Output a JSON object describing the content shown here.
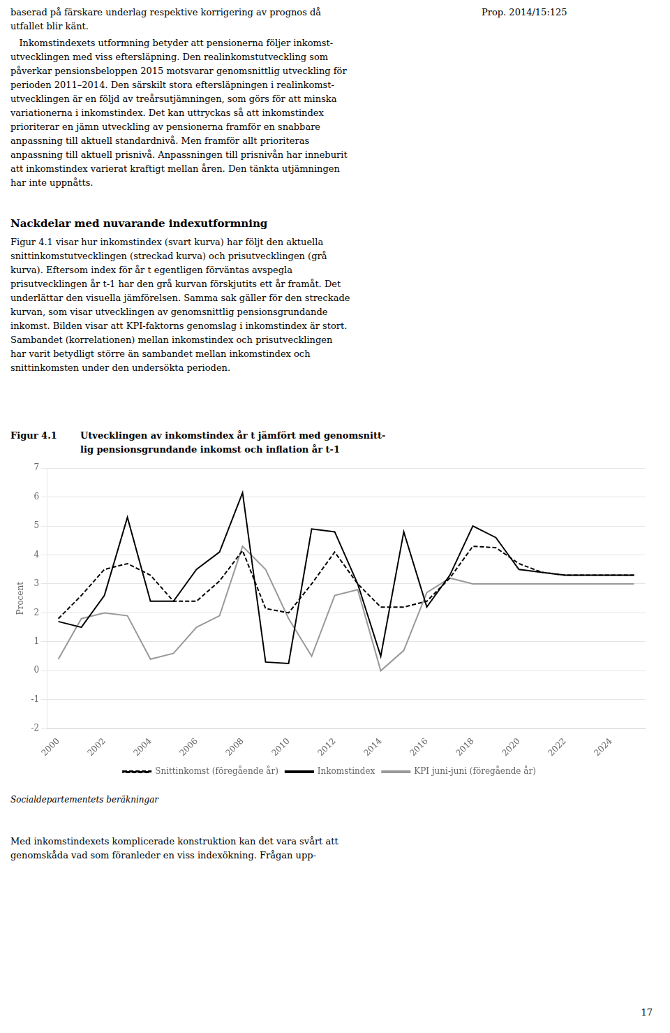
{
  "chart_data": {
    "type": "line",
    "title": "Utvecklingen av inkomstindex år t jämfört med genomsnitt-\nlig pensionsgrundande inkomst och inflation år t-1",
    "y_label": "Procent",
    "annotations": [
      "Figur 4.1",
      "Socialdepartementets beräkningar"
    ],
    "x": [
      2000,
      2001,
      2002,
      2003,
      2004,
      2005,
      2006,
      2007,
      2008,
      2009,
      2010,
      2011,
      2012,
      2013,
      2014,
      2015,
      2016,
      2017,
      2018,
      2019,
      2020,
      2021,
      2022,
      2023,
      2024,
      2025
    ],
    "series": [
      {
        "name": "Snittinkomst (föregående år)",
        "color": "#000000",
        "line_style": "dashed",
        "values": [
          1.8,
          2.6,
          3.5,
          3.7,
          3.3,
          2.4,
          2.4,
          3.1,
          4.15,
          2.15,
          2.0,
          3.0,
          4.1,
          3.0,
          2.2,
          2.2,
          2.4,
          3.2,
          4.3,
          4.25,
          3.7,
          3.4,
          3.3,
          3.3,
          3.3,
          3.3
        ]
      },
      {
        "name": "Inkomstindex",
        "color": "#000000",
        "line_style": "solid",
        "values": [
          1.7,
          1.5,
          2.6,
          5.3,
          2.4,
          2.4,
          3.5,
          4.1,
          6.15,
          0.3,
          0.25,
          4.9,
          4.8,
          3.0,
          0.5,
          4.8,
          2.2,
          3.3,
          5.0,
          4.6,
          3.5,
          3.4,
          3.3,
          3.3,
          3.3,
          3.3
        ]
      },
      {
        "name": "KPI juni-juni (föregående år)",
        "color": "#999999",
        "line_style": "solid",
        "values": [
          0.4,
          1.8,
          2.0,
          1.9,
          0.4,
          0.6,
          1.5,
          1.9,
          4.3,
          3.5,
          1.8,
          0.5,
          2.6,
          2.8,
          0.0,
          0.7,
          2.7,
          3.2,
          3.0,
          3.0,
          3.0,
          3.0,
          3.0,
          3.0,
          3.0,
          3.0
        ]
      }
    ],
    "xlim": [
      1999.5,
      2025.5
    ],
    "xticks": [
      2000,
      2002,
      2004,
      2006,
      2008,
      2010,
      2012,
      2014,
      2016,
      2018,
      2020,
      2022,
      2024
    ],
    "ylim": [
      -2,
      7
    ],
    "yticks": [
      -2,
      -1,
      0,
      1,
      2,
      3,
      4,
      5,
      6,
      7
    ],
    "grid": "y",
    "legend": "bottom"
  },
  "page_text": [
    "baserad på färskare underlag respektive korrigering av prognos då",
    "Prop. 2014/15:125",
    "utfallet blir känt.",
    "   Inkomstindexets utformning betyder att pensionerna följer inkomst-\nutvecklingen med viss eftersläpning. Den realinkomstutveckling som\npåverkar pensionsbeloppen 2015 motsvarar genomsnittlig utveckling för\nperioden 2011–2014. Den särskilt stora eftersläpningen i realinkomst-\nutvecklingen är en följd av treårsutjämningen, som görs för att minska\nvariationerna i inkomstindex. Det kan uttryckas så att inkomstindex\nprioriterar en jämn utveckling av pensionerna framför en snabbare\nanpassning till aktuell standardnivå. Men framför allt prioriteras\nanpassning till aktuell prisnivå. Anpassningen till prisnivån har inneburit\natt inkomstindex varierat kraftigt mellan åren. Den tänkta utjämningen\nhar inte uppnåtts.",
    "Nackdelar med nuvarande indexutformning",
    "Figur 4.1 visar hur inkomstindex (svart kurva) har följt den aktuella\nsnittinkomstutvecklingen (streckad kurva) och prisutvecklingen (grå\nkurva). Eftersom index för år t egentligen förväntas avspegla\nprisutvecklingen år t-1 har den grå kurvan förskjutits ett år framåt. Det\nunderlättar den visuella jämförelsen. Samma sak gäller för den streckade\nkurvan, som visar utvecklingen av genomsnittlig pensionsgrundande\ninkomst. Bilden visar att KPI-faktorns genomslag i inkomstindex är stort.\nSambandet (korrelationen) mellan inkomstindex och prisutvecklingen\nhar varit betydligt större än sambandet mellan inkomstindex och\nsnittinkomsten under den undersökta perioden.",
    "Med inkomstindexets komplicerade konstruktion kan det vara svårt att\ngenomskåda vad som föranleder en viss indexökning. Frågan upp-",
    "17"
  ]
}
